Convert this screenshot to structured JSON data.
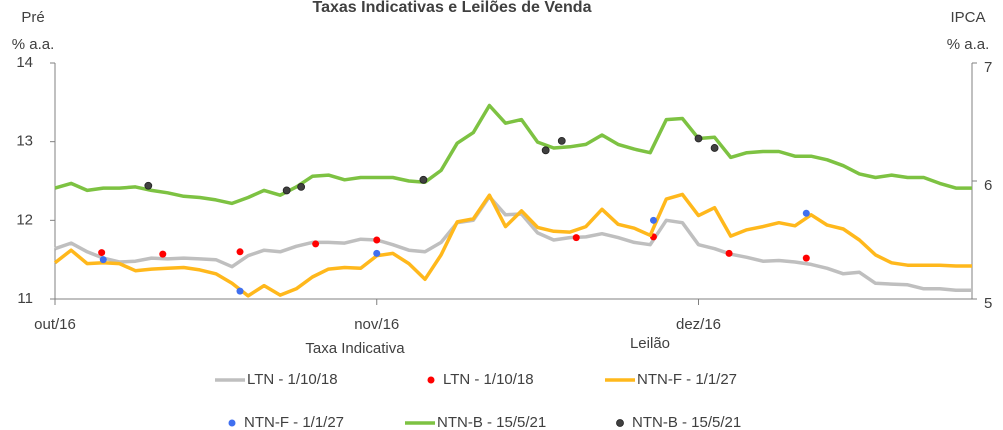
{
  "chart_data": {
    "type": "line",
    "title": "Taxas Indicativas e Leilões de Venda",
    "ylabel": [
      "Pré",
      "% a.a."
    ],
    "y2label": [
      "IPCA",
      "% a.a."
    ],
    "legend_groups": [
      "Taxa Indicativa",
      "Leilão"
    ],
    "x": [
      0,
      1,
      2,
      3,
      4,
      5,
      6,
      7,
      8,
      9,
      10,
      11,
      12,
      13,
      14,
      15,
      16,
      17,
      18,
      19,
      20,
      21,
      22,
      23,
      24,
      25,
      26,
      27,
      28,
      29,
      30,
      31,
      32,
      33,
      34,
      35,
      36,
      37,
      38,
      39,
      40,
      41,
      42,
      43,
      44,
      45,
      46,
      47,
      48,
      49,
      50,
      51,
      52,
      53,
      54,
      55,
      56,
      57
    ],
    "xlim": [
      0,
      57
    ],
    "xticks": [
      {
        "value": 0,
        "label": "out/16"
      },
      {
        "value": 20,
        "label": "nov/16"
      },
      {
        "value": 40,
        "label": "dez/16"
      }
    ],
    "ylim": [
      11,
      14
    ],
    "yticks": [
      11,
      12,
      13,
      14
    ],
    "y2lim": [
      5,
      7
    ],
    "y2ticks": [
      5,
      6,
      7
    ],
    "series": [
      {
        "name": "LTN - 1/10/18",
        "type": "line",
        "color": "#bfbfbf",
        "values": [
          11.64,
          11.71,
          11.6,
          11.52,
          11.47,
          11.48,
          11.52,
          11.51,
          11.52,
          11.51,
          11.5,
          11.41,
          11.55,
          11.62,
          11.6,
          11.67,
          11.72,
          11.72,
          11.71,
          11.76,
          11.75,
          11.69,
          11.62,
          11.6,
          11.72,
          11.97,
          12.0,
          12.3,
          12.07,
          12.08,
          11.84,
          11.75,
          11.78,
          11.79,
          11.83,
          11.78,
          11.72,
          11.69,
          12.0,
          11.97,
          11.69,
          11.64,
          11.57,
          11.53,
          11.48,
          11.49,
          11.47,
          11.44,
          11.39,
          11.32,
          11.34,
          11.2,
          11.19,
          11.18,
          11.13,
          11.13,
          11.11,
          11.11
        ]
      },
      {
        "name": "LTN - 1/10/18",
        "type": "scatter",
        "color": "#ff0000",
        "x": [
          2.9,
          6.7,
          11.5,
          16.2,
          20.0,
          32.4,
          37.2,
          41.9,
          46.7
        ],
        "values": [
          11.59,
          11.57,
          11.6,
          11.7,
          11.75,
          11.78,
          11.79,
          11.58,
          11.52
        ]
      },
      {
        "name": "NTN-F - 1/1/27",
        "type": "line",
        "color": "#ffb81c",
        "values": [
          11.46,
          11.62,
          11.45,
          11.46,
          11.45,
          11.36,
          11.38,
          11.39,
          11.4,
          11.37,
          11.32,
          11.2,
          11.04,
          11.17,
          11.05,
          11.13,
          11.28,
          11.38,
          11.4,
          11.39,
          11.55,
          11.58,
          11.45,
          11.25,
          11.56,
          11.98,
          12.02,
          12.32,
          11.92,
          12.12,
          11.91,
          11.86,
          11.85,
          11.92,
          12.14,
          11.95,
          11.9,
          11.81,
          12.27,
          12.33,
          12.06,
          12.16,
          11.8,
          11.88,
          11.92,
          11.97,
          11.93,
          12.07,
          11.94,
          11.89,
          11.75,
          11.56,
          11.46,
          11.43,
          11.43,
          11.43,
          11.42,
          11.42
        ]
      },
      {
        "name": "NTN-F - 1/1/27",
        "type": "scatter",
        "color": "#3f6ff0",
        "x": [
          3.0,
          11.5,
          20.0,
          37.2,
          46.7
        ],
        "values": [
          11.5,
          11.1,
          11.58,
          12.0,
          12.09
        ]
      },
      {
        "name": "NTN-B - 15/5/21",
        "type": "line",
        "color": "#7dc242",
        "axis": "y2",
        "values": [
          5.94,
          5.98,
          5.92,
          5.94,
          5.94,
          5.95,
          5.92,
          5.9,
          5.87,
          5.86,
          5.84,
          5.81,
          5.86,
          5.92,
          5.88,
          5.95,
          6.04,
          6.05,
          6.01,
          6.03,
          6.03,
          6.03,
          6.0,
          5.99,
          6.09,
          6.32,
          6.41,
          6.64,
          6.49,
          6.52,
          6.33,
          6.28,
          6.29,
          6.31,
          6.39,
          6.31,
          6.27,
          6.24,
          6.52,
          6.53,
          6.36,
          6.37,
          6.2,
          6.24,
          6.25,
          6.25,
          6.21,
          6.21,
          6.18,
          6.13,
          6.06,
          6.03,
          6.05,
          6.03,
          6.03,
          5.98,
          5.94,
          5.94
        ]
      },
      {
        "name": "NTN-B - 15/5/21",
        "type": "scatter",
        "color": "#404040",
        "axis": "y2",
        "x": [
          5.8,
          14.4,
          15.3,
          22.9,
          30.5,
          31.5,
          40.0,
          41.0
        ],
        "values": [
          5.96,
          5.92,
          5.95,
          6.01,
          6.26,
          6.34,
          6.36,
          6.28
        ]
      }
    ]
  }
}
